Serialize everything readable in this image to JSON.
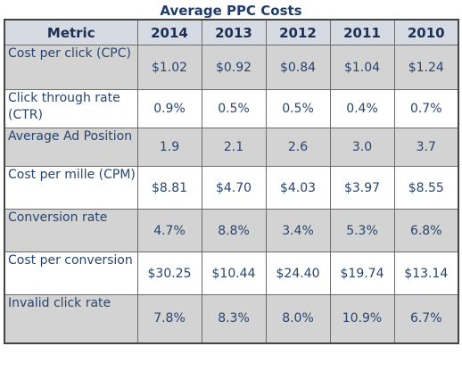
{
  "chart_data": {
    "type": "table",
    "title": "Average PPC Costs",
    "columns": [
      "Metric",
      "2014",
      "2013",
      "2012",
      "2011",
      "2010"
    ],
    "rows": [
      {
        "metric": "Cost per click (CPC)",
        "values": [
          "$1.02",
          "$0.92",
          "$0.84",
          "$1.04",
          "$1.24"
        ]
      },
      {
        "metric": "Click through rate (CTR)",
        "values": [
          "0.9%",
          "0.5%",
          "0.5%",
          "0.4%",
          "0.7%"
        ]
      },
      {
        "metric": "Average Ad Position",
        "values": [
          "1.9",
          "2.1",
          "2.6",
          "3.0",
          "3.7"
        ]
      },
      {
        "metric": "Cost per mille (CPM)",
        "values": [
          "$8.81",
          "$4.70",
          "$4.03",
          "$3.97",
          "$8.55"
        ]
      },
      {
        "metric": "Conversion rate",
        "values": [
          "4.7%",
          "8.8%",
          "3.4%",
          "5.3%",
          "6.8%"
        ]
      },
      {
        "metric": "Cost per conversion",
        "values": [
          "$30.25",
          "$10.44",
          "$24.40",
          "$19.74",
          "$13.14"
        ]
      },
      {
        "metric": "Invalid click rate",
        "values": [
          "7.8%",
          "8.3%",
          "8.0%",
          "10.9%",
          "6.7%"
        ]
      }
    ],
    "colors": {
      "header_bg": "#d6dbe3",
      "shaded_row_bg": "#d3d3d3",
      "plain_row_bg": "#ffffff",
      "text": "#27456f",
      "title": "#1f3d6b"
    }
  }
}
